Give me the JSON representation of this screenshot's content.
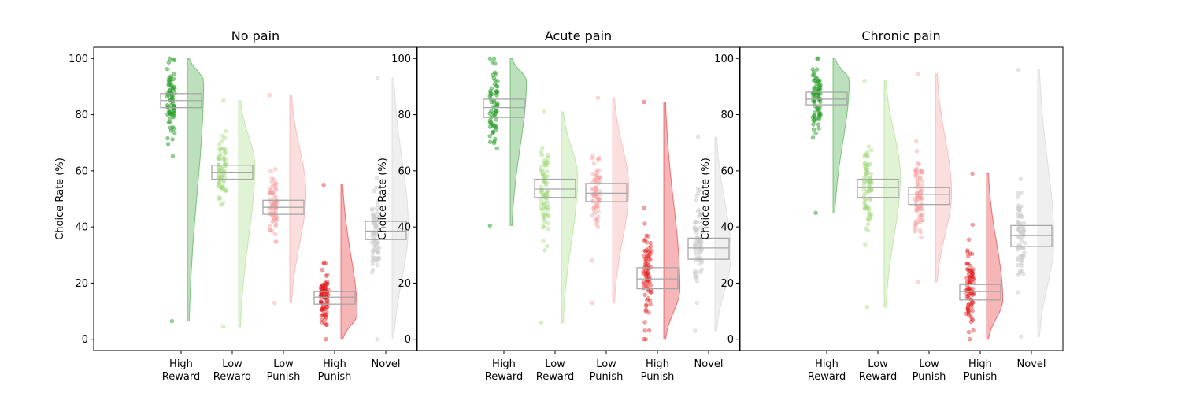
{
  "ylabel": "Choice Rate (%)",
  "categories": [
    {
      "line1": "High",
      "line2": "Reward",
      "color": "#2ca02c",
      "alpha": 0.5
    },
    {
      "line1": "Low",
      "line2": "Reward",
      "color": "#9fd97a",
      "alpha": 0.4
    },
    {
      "line1": "Low",
      "line2": "Punish",
      "color": "#f49b9b",
      "alpha": 0.4
    },
    {
      "line1": "High",
      "line2": "Punish",
      "color": "#e31a1c",
      "alpha": 0.4
    },
    {
      "line1": "Novel",
      "line2": "",
      "color": "#cccccc",
      "alpha": 0.5
    }
  ],
  "colors": {
    "box": "#a6a6a6",
    "axis": "#000000"
  },
  "chart_data": [
    {
      "type": "raincloud",
      "title": "No pain",
      "ylim": [
        -4,
        104
      ],
      "yticks": [
        0,
        20,
        40,
        60,
        80,
        100
      ],
      "series": [
        {
          "min": 6.5,
          "max": 100,
          "q1": 82.5,
          "median": 85,
          "q3": 87.5,
          "mode": 92,
          "n": 75
        },
        {
          "min": 4.5,
          "max": 85,
          "q1": 57,
          "median": 59.5,
          "q3": 62,
          "mode": 62,
          "n": 75
        },
        {
          "min": 13,
          "max": 87,
          "q1": 44.5,
          "median": 47,
          "q3": 49.5,
          "mode": 52,
          "n": 75
        },
        {
          "min": 0,
          "max": 55,
          "q1": 12.5,
          "median": 15,
          "q3": 17,
          "mode": 9,
          "n": 85
        },
        {
          "min": 0,
          "max": 93,
          "q1": 35.5,
          "median": 38.5,
          "q3": 42,
          "mode": 40,
          "n": 75
        }
      ]
    },
    {
      "type": "raincloud",
      "title": "Acute pain",
      "ylim": [
        -4,
        104
      ],
      "yticks": [
        0,
        20,
        40,
        60,
        80,
        100
      ],
      "series": [
        {
          "min": 40.5,
          "max": 100,
          "q1": 79,
          "median": 82.5,
          "q3": 85.5,
          "mode": 92,
          "n": 65
        },
        {
          "min": 6,
          "max": 81,
          "q1": 50.5,
          "median": 53.5,
          "q3": 57,
          "mode": 58,
          "n": 80
        },
        {
          "min": 13,
          "max": 86,
          "q1": 49,
          "median": 52,
          "q3": 55.5,
          "mode": 54,
          "n": 70
        },
        {
          "min": 0,
          "max": 84.5,
          "q1": 18,
          "median": 21.5,
          "q3": 25.5,
          "mode": 18,
          "n": 80
        },
        {
          "min": 3,
          "max": 72,
          "q1": 28.5,
          "median": 32.5,
          "q3": 36,
          "mode": 30,
          "n": 70
        }
      ]
    },
    {
      "type": "raincloud",
      "title": "Chronic pain",
      "ylim": [
        -4,
        104
      ],
      "yticks": [
        0,
        20,
        40,
        60,
        80,
        100
      ],
      "series": [
        {
          "min": 45,
          "max": 100,
          "q1": 83.5,
          "median": 85.5,
          "q3": 88,
          "mode": 92,
          "n": 80
        },
        {
          "min": 11.5,
          "max": 92,
          "q1": 50.5,
          "median": 54,
          "q3": 57,
          "mode": 58,
          "n": 80
        },
        {
          "min": 20.5,
          "max": 94.5,
          "q1": 48,
          "median": 51.5,
          "q3": 54,
          "mode": 52,
          "n": 80
        },
        {
          "min": 0,
          "max": 59,
          "q1": 14,
          "median": 17,
          "q3": 19.5,
          "mode": 14,
          "n": 85
        },
        {
          "min": 1,
          "max": 96,
          "q1": 33,
          "median": 37,
          "q3": 40.5,
          "mode": 35,
          "n": 70
        }
      ]
    }
  ]
}
